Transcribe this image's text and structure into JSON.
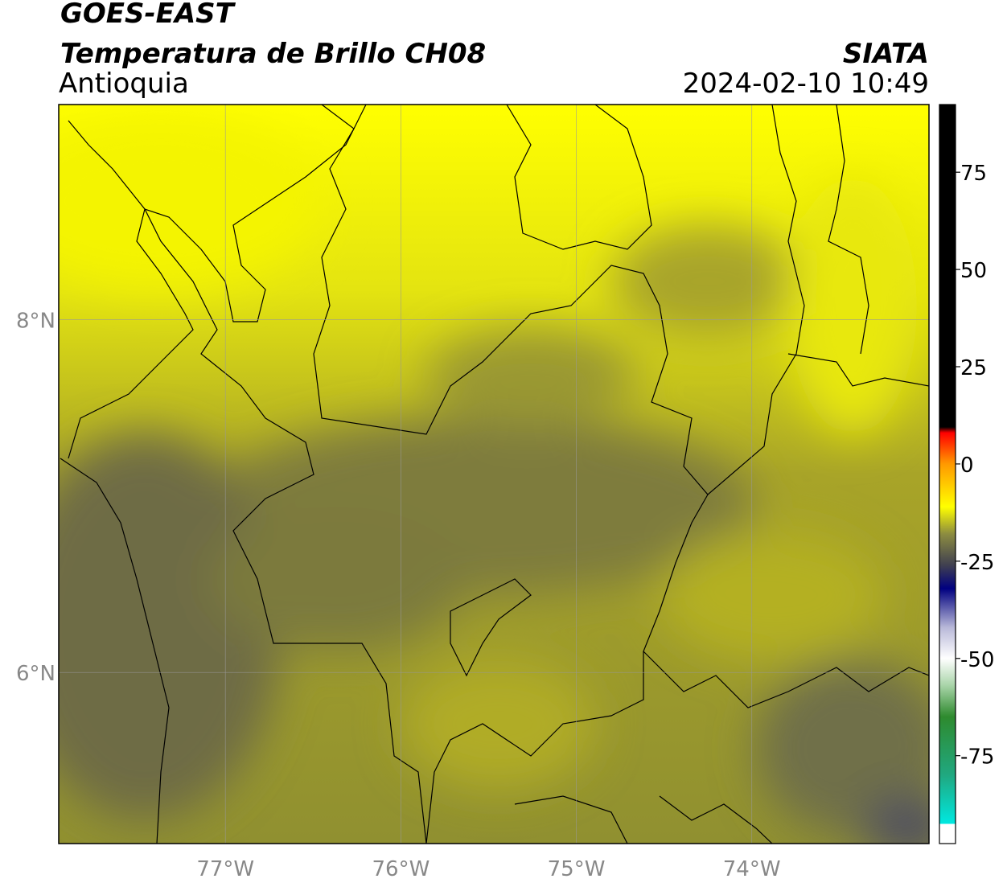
{
  "chart_data": {
    "type": "map",
    "title": "GOES-EAST",
    "subtitle": "Temperatura de Brillo CH08",
    "region": "Antioquia",
    "source": "SIATA",
    "datetime": "2024-02-10 10:49",
    "xlim": [
      -77.95,
      -72.99
    ],
    "ylim": [
      5.03,
      9.22
    ],
    "xticks": [
      {
        "value": -77,
        "label": "77°W"
      },
      {
        "value": -76,
        "label": "76°W"
      },
      {
        "value": -75,
        "label": "75°W"
      },
      {
        "value": -74,
        "label": "74°W"
      }
    ],
    "yticks": [
      {
        "value": 6,
        "label": "6°N"
      },
      {
        "value": 8,
        "label": "8°N"
      }
    ],
    "grid": true,
    "colorbar": {
      "lim": [
        -97.6,
        92.4
      ],
      "ticks": [
        -75,
        -50,
        -25,
        0,
        25,
        50,
        75
      ],
      "colormap": [
        {
          "value": -97.6,
          "color": "#ffffff"
        },
        {
          "value": -92.5,
          "color": "#ffffff"
        },
        {
          "value": -92.5,
          "color": "#00e8e0"
        },
        {
          "value": -80,
          "color": "#20a880"
        },
        {
          "value": -65,
          "color": "#2e8a2e"
        },
        {
          "value": -57,
          "color": "#a8d4a8"
        },
        {
          "value": -50,
          "color": "#ffffff"
        },
        {
          "value": -42,
          "color": "#b8b8d8"
        },
        {
          "value": -32,
          "color": "#000080"
        },
        {
          "value": -26,
          "color": "#404050"
        },
        {
          "value": -18,
          "color": "#8c8c40"
        },
        {
          "value": -11,
          "color": "#ffff00"
        },
        {
          "value": 0,
          "color": "#ff9900"
        },
        {
          "value": 8,
          "color": "#ff0000"
        },
        {
          "value": 9.5,
          "color": "#000000"
        },
        {
          "value": 92.4,
          "color": "#000000"
        }
      ]
    }
  }
}
